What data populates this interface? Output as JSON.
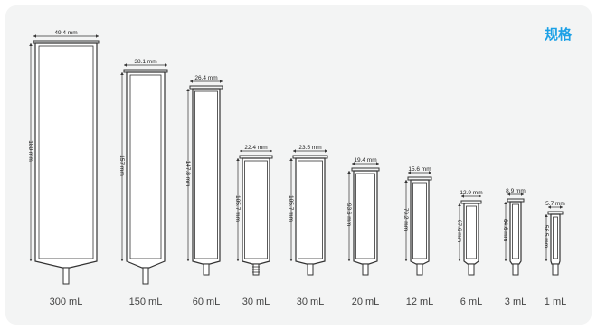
{
  "spec_title": "规格",
  "cartridges": [
    {
      "volume": "300 mL",
      "width": "49.4 mm",
      "height": "180 mm"
    },
    {
      "volume": "150 mL",
      "width": "38.1 mm",
      "height": "157 mm"
    },
    {
      "volume": "60 mL",
      "width": "26.4 mm",
      "height": "147.8 mm"
    },
    {
      "volume": "30 mL",
      "width": "22.4 mm",
      "height": "105.7 mm"
    },
    {
      "volume": "30 mL",
      "width": "23.5 mm",
      "height": "105.7 mm"
    },
    {
      "volume": "20 mL",
      "width": "19.4 mm",
      "height": "93.6 mm"
    },
    {
      "volume": "12 mL",
      "width": "15.6 mm",
      "height": "79.2 mm"
    },
    {
      "volume": "6 mL",
      "width": "12.9 mm",
      "height": "67.6 mm"
    },
    {
      "volume": "3 mL",
      "width": "8.9 mm",
      "height": "64.6 mm"
    },
    {
      "volume": "1 mL",
      "width": "5.7 mm",
      "height": "56.5 mm"
    }
  ],
  "colors": {
    "accent": "#1ba0e6",
    "line": "#333333",
    "card": "#f3f4f4"
  }
}
